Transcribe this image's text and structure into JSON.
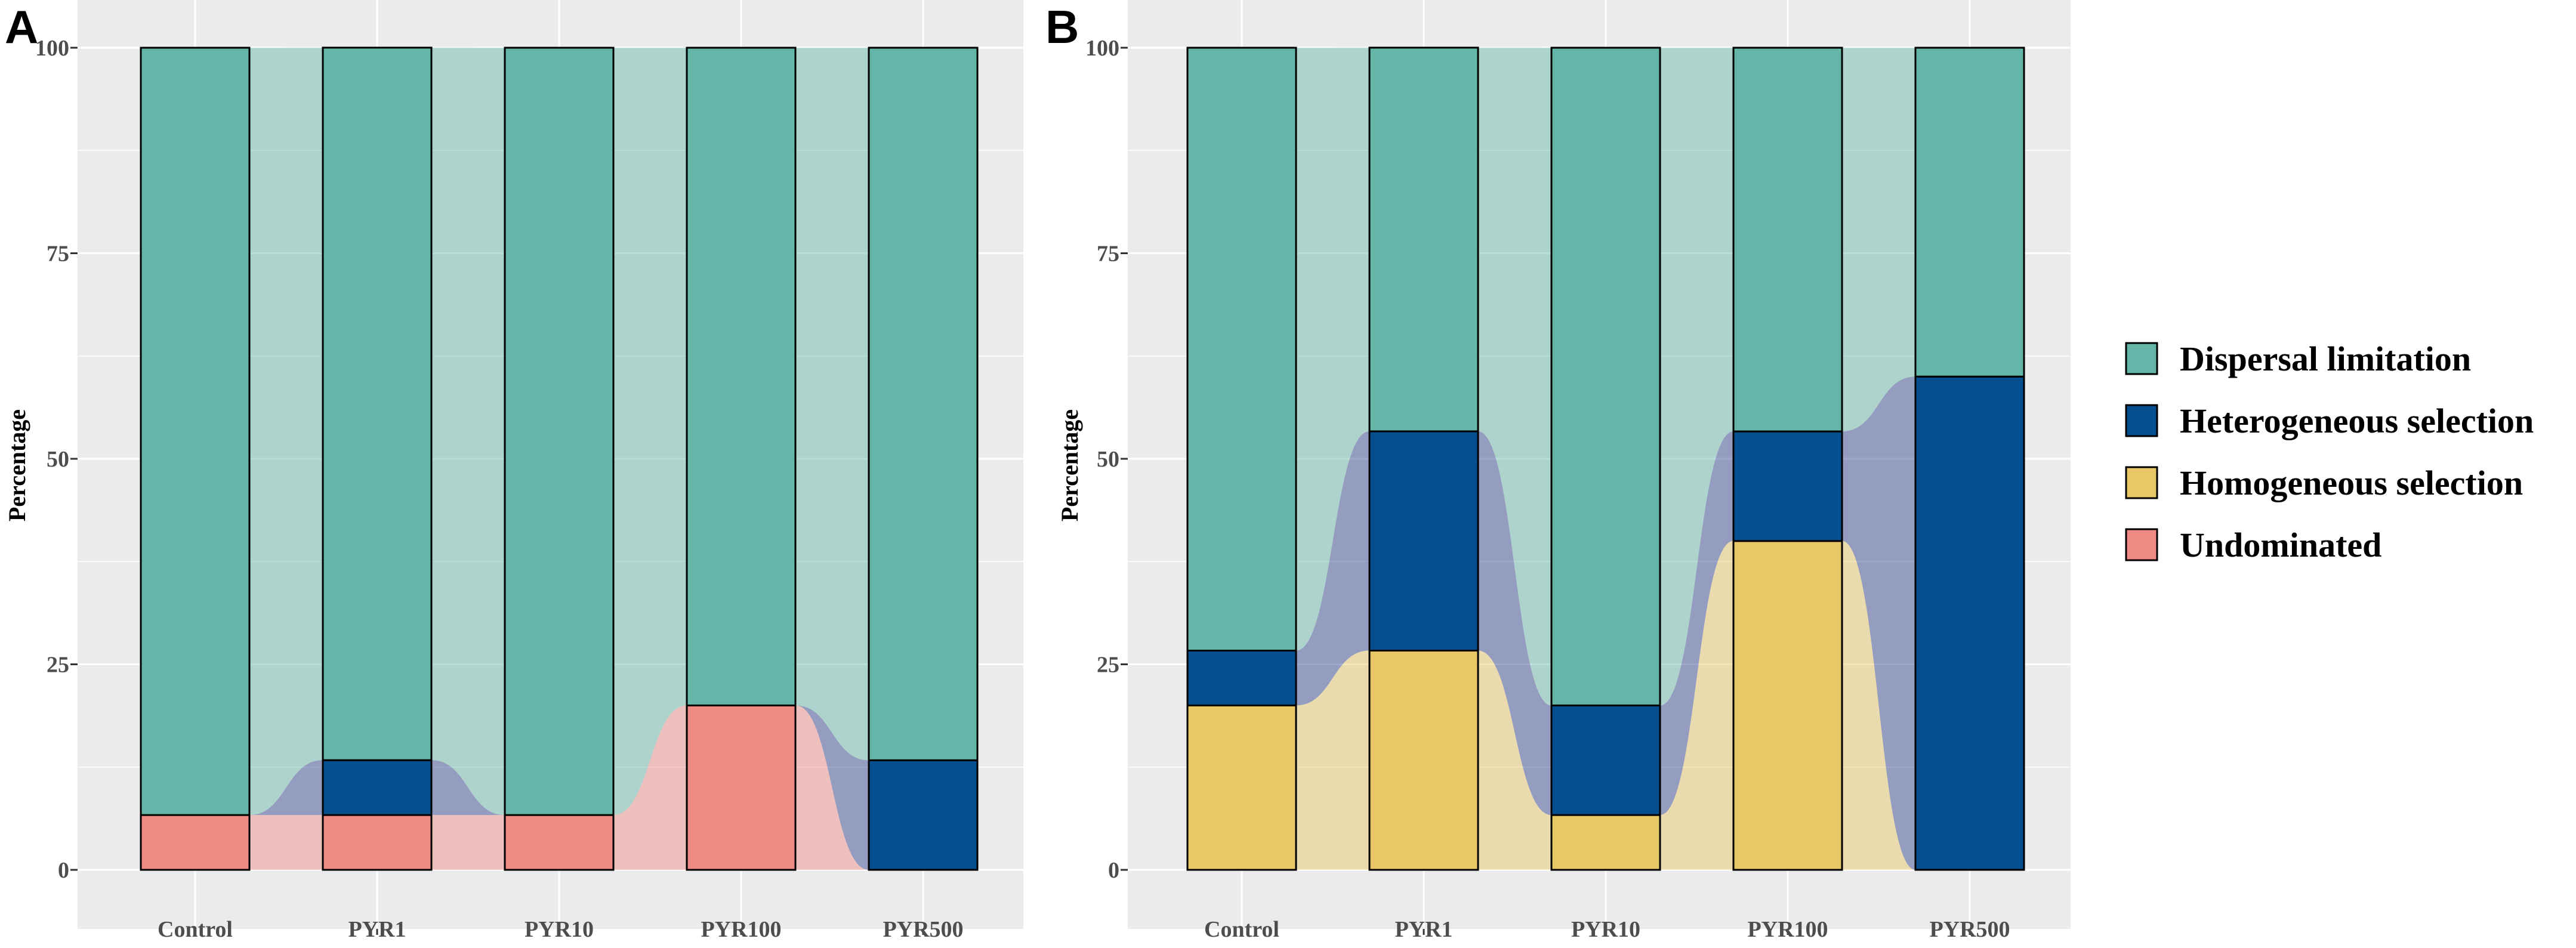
{
  "chart_data": [
    {
      "type": "bar",
      "stacked": true,
      "alluvial_flows": true,
      "panel_label": "A",
      "ylabel": "Percentage",
      "xlabel": "",
      "ylim": [
        0,
        100
      ],
      "yticks": [
        0,
        25,
        50,
        75,
        100
      ],
      "ytick_labels": [
        "0",
        "25",
        "50",
        "75",
        "100"
      ],
      "grid": true,
      "categories": [
        "Control",
        "PYR1",
        "PYR10",
        "PYR100",
        "PYR500"
      ],
      "series": [
        {
          "name": "Undominated",
          "color": "#F08A84",
          "values": [
            6.67,
            6.67,
            6.67,
            20,
            0
          ]
        },
        {
          "name": "Homogeneous selection",
          "color": "#E8C866",
          "values": [
            0,
            0,
            0,
            0,
            0
          ]
        },
        {
          "name": "Heterogeneous selection",
          "color": "#064F8E",
          "values": [
            0,
            6.67,
            0,
            0,
            13.33
          ]
        },
        {
          "name": "Dispersal limitation",
          "color": "#63B6A8",
          "values": [
            93.33,
            86.67,
            93.33,
            80,
            86.67
          ]
        }
      ]
    },
    {
      "type": "bar",
      "stacked": true,
      "alluvial_flows": true,
      "panel_label": "B",
      "ylabel": "Percentage",
      "xlabel": "",
      "ylim": [
        0,
        100
      ],
      "yticks": [
        0,
        25,
        50,
        75,
        100
      ],
      "ytick_labels": [
        "0",
        "25",
        "50",
        "75",
        "100"
      ],
      "grid": true,
      "categories": [
        "Control",
        "PYR1",
        "PYR10",
        "PYR100",
        "PYR500"
      ],
      "series": [
        {
          "name": "Undominated",
          "color": "#F08A84",
          "values": [
            0,
            0,
            0,
            0,
            0
          ]
        },
        {
          "name": "Homogeneous selection",
          "color": "#E8C866",
          "values": [
            20,
            26.67,
            6.67,
            40,
            0
          ]
        },
        {
          "name": "Heterogeneous selection",
          "color": "#064F8E",
          "values": [
            6.67,
            26.67,
            13.33,
            13.33,
            60
          ]
        },
        {
          "name": "Dispersal limitation",
          "color": "#63B6A8",
          "values": [
            73.33,
            46.67,
            80,
            46.67,
            40
          ]
        }
      ]
    }
  ],
  "legend": {
    "position": "right",
    "items": [
      {
        "label": "Dispersal limitation",
        "color": "#63B6A8"
      },
      {
        "label": "Heterogeneous selection",
        "color": "#064F8E"
      },
      {
        "label": "Homogeneous selection",
        "color": "#E8C866"
      },
      {
        "label": "Undominated",
        "color": "#F08A84"
      }
    ]
  },
  "colors": {
    "panel_background": "#EBEBEB",
    "grid": "#FFFFFF",
    "bar_border": "#000000"
  }
}
